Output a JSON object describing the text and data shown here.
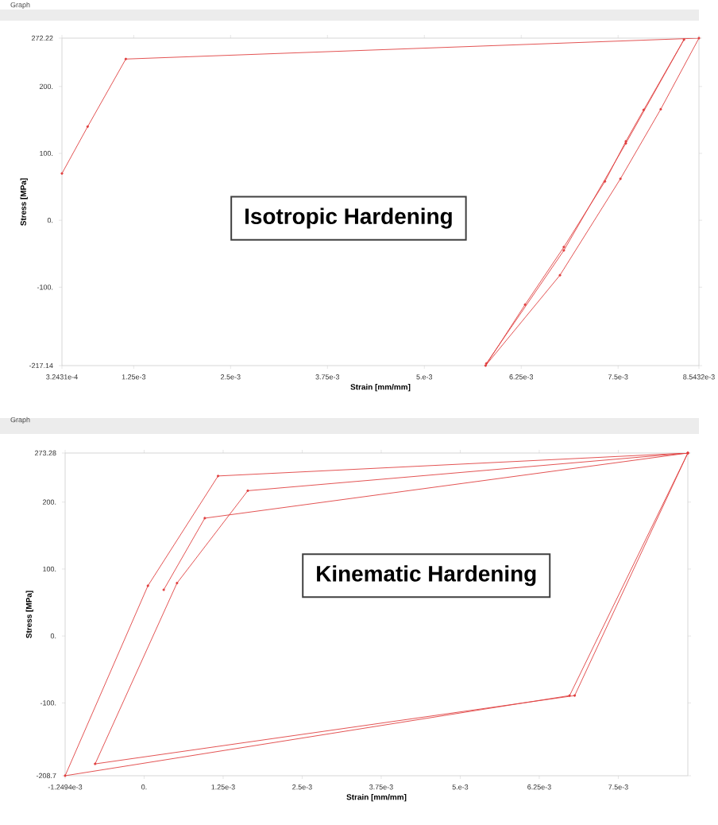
{
  "chart_data": [
    {
      "type": "line",
      "title": "Graph",
      "xlabel": "Strain [mm/mm]",
      "ylabel": "Stress [MPa]",
      "annotations": [
        "Isotropic Hardening"
      ],
      "series": [
        {
          "color": "#e04040",
          "x": [
            0.00032431,
            0.000656,
            0.001148,
            0.0085432,
            0.00805,
            0.00753,
            0.00675,
            0.00579,
            0.0063,
            0.0068,
            0.00733,
            0.0076,
            0.00783,
            0.00835,
            0.0076,
            0.0068,
            0.0058
          ],
          "values": [
            70,
            140,
            241,
            272.22,
            166,
            62,
            -82,
            -217.14,
            -126,
            -40,
            58,
            118,
            165,
            270,
            115,
            -45,
            -214
          ]
        }
      ],
      "xlim": [
        0.00032431,
        0.0085432
      ],
      "ylim": [
        -217.14,
        272.22
      ],
      "xticks": [
        {
          "value": 0.00032431,
          "label": "3.2431e-4"
        },
        {
          "value": 0.00125,
          "label": "1.25e-3"
        },
        {
          "value": 0.0025,
          "label": "2.5e-3"
        },
        {
          "value": 0.00375,
          "label": "3.75e-3"
        },
        {
          "value": 0.005,
          "label": "5.e-3"
        },
        {
          "value": 0.00625,
          "label": "6.25e-3"
        },
        {
          "value": 0.0075,
          "label": "7.5e-3"
        },
        {
          "value": 0.0085432,
          "label": "8.5432e-3"
        }
      ],
      "yticks": [
        {
          "value": -217.14,
          "label": "-217.14"
        },
        {
          "value": -100,
          "label": "-100."
        },
        {
          "value": 0,
          "label": "0."
        },
        {
          "value": 100,
          "label": "100."
        },
        {
          "value": 200,
          "label": "200."
        },
        {
          "value": 272.22,
          "label": "272.22"
        }
      ],
      "marker": "circle",
      "line_style": "solid"
    },
    {
      "type": "line",
      "title": "Graph",
      "xlabel": "Strain [mm/mm]",
      "ylabel": "Stress [MPa]",
      "annotations": [
        "Kinematic Hardening"
      ],
      "series": [
        {
          "color": "#e04040",
          "x": [
            0.00031,
            0.00096,
            0.0086,
            0.00681,
            -0.000775,
            0.00052,
            0.00164,
            0.0086,
            0.00673,
            -0.0012494,
            6e-05,
            0.00117,
            0.0086
          ],
          "values": [
            69,
            176,
            273.28,
            -89,
            -191,
            79,
            217,
            273.28,
            -89,
            -208.7,
            75,
            239,
            273.28
          ]
        }
      ],
      "xlim": [
        -0.0012494,
        0.0086
      ],
      "ylim": [
        -208.7,
        273.28
      ],
      "xticks": [
        {
          "value": -0.0012494,
          "label": "-1.2494e-3"
        },
        {
          "value": 0,
          "label": "0."
        },
        {
          "value": 0.00125,
          "label": "1.25e-3"
        },
        {
          "value": 0.0025,
          "label": "2.5e-3"
        },
        {
          "value": 0.00375,
          "label": "3.75e-3"
        },
        {
          "value": 0.005,
          "label": "5.e-3"
        },
        {
          "value": 0.00625,
          "label": "6.25e-3"
        },
        {
          "value": 0.0075,
          "label": "7.5e-3"
        }
      ],
      "yticks": [
        {
          "value": -208.7,
          "label": "-208.7"
        },
        {
          "value": -100,
          "label": "-100."
        },
        {
          "value": 0,
          "label": "0."
        },
        {
          "value": 100,
          "label": "100."
        },
        {
          "value": 200,
          "label": "200."
        },
        {
          "value": 273.28,
          "label": "273.28"
        }
      ],
      "marker": "circle",
      "line_style": "solid"
    }
  ]
}
